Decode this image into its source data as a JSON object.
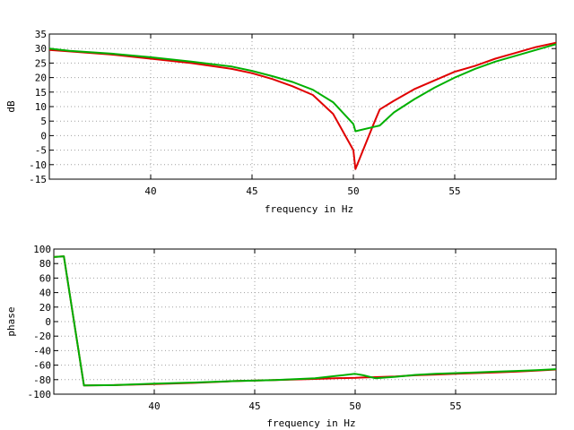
{
  "chart_data": [
    {
      "type": "line",
      "xlabel": "frequency in Hz",
      "ylabel": "dB",
      "xlim": [
        35,
        60
      ],
      "ylim": [
        -15,
        35
      ],
      "x_ticks": [
        40,
        45,
        50,
        55
      ],
      "y_ticks": [
        -15,
        -10,
        -5,
        0,
        5,
        10,
        15,
        20,
        25,
        30,
        35
      ],
      "grid": true,
      "series": [
        {
          "color": "#e00000",
          "x": [
            35,
            36,
            38,
            40,
            42,
            44,
            45,
            46,
            47,
            48,
            49,
            50,
            50.1,
            51,
            51.3,
            52,
            53,
            54,
            55,
            56,
            57,
            58,
            59,
            60
          ],
          "y": [
            29.5,
            29,
            28,
            26.5,
            25,
            23,
            21.5,
            19.5,
            17,
            14,
            7.5,
            -5,
            -11.5,
            4,
            9,
            12,
            16,
            19,
            22,
            24,
            26.5,
            28.5,
            30.5,
            32
          ]
        },
        {
          "color": "#00b000",
          "x": [
            35,
            36,
            38,
            40,
            42,
            44,
            45,
            46,
            47,
            48,
            49,
            50,
            50.1,
            51,
            51.3,
            52,
            53,
            54,
            55,
            56,
            57,
            58,
            59,
            60
          ],
          "y": [
            30,
            29.2,
            28.3,
            27,
            25.5,
            23.8,
            22.3,
            20.5,
            18.5,
            15.8,
            11.5,
            4,
            1.5,
            3,
            3.5,
            8,
            12.5,
            16.5,
            20,
            23,
            25.5,
            27.5,
            29.5,
            31.5
          ]
        }
      ]
    },
    {
      "type": "line",
      "xlabel": "frequency in Hz",
      "ylabel": "phase",
      "xlim": [
        35,
        60
      ],
      "ylim": [
        -100,
        100
      ],
      "x_ticks": [
        40,
        45,
        50,
        55
      ],
      "y_ticks": [
        -100,
        -80,
        -60,
        -40,
        -20,
        0,
        20,
        40,
        60,
        80,
        100
      ],
      "grid": true,
      "series": [
        {
          "color": "#e00000",
          "x": [
            35,
            35.5,
            36.5,
            38,
            40,
            42,
            44,
            46,
            48,
            49,
            50,
            50.4,
            51,
            52,
            53,
            54,
            55,
            56,
            57,
            58,
            59,
            60
          ],
          "y": [
            89,
            90,
            -88,
            -87.5,
            -86,
            -84.5,
            -82,
            -80.5,
            -79,
            -78,
            -77.5,
            -77,
            -76.5,
            -75.5,
            -74,
            -73,
            -72,
            -71,
            -70,
            -69,
            -67.5,
            -66
          ]
        },
        {
          "color": "#00b000",
          "x": [
            35,
            35.5,
            36.5,
            38,
            40,
            42,
            44,
            46,
            48,
            49,
            50,
            50.4,
            51,
            52,
            53,
            54,
            55,
            56,
            57,
            58,
            59,
            60
          ],
          "y": [
            89,
            90,
            -88,
            -87.5,
            -85.5,
            -84,
            -82,
            -80.5,
            -78,
            -75,
            -72,
            -74,
            -78,
            -76,
            -73.5,
            -72,
            -71,
            -70,
            -69,
            -68,
            -67,
            -65.5
          ]
        }
      ]
    }
  ]
}
